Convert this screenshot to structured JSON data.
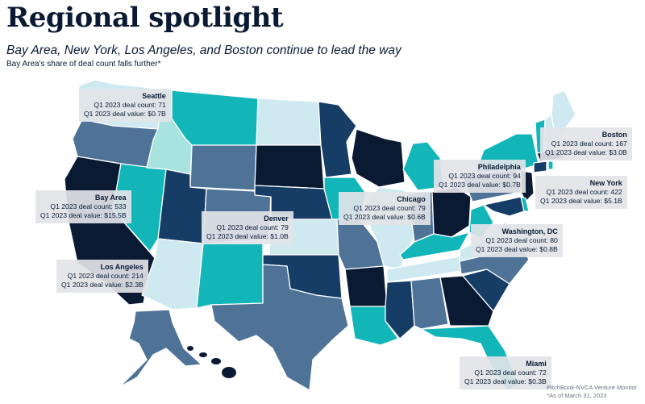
{
  "title": "Regional spotlight",
  "subtitle": "Bay Area, New York, Los Angeles, and Boston continue to lead the way",
  "note": "Bay Area's share of deal count falls further*",
  "colors": {
    "darkest": "#0b1a33",
    "dark": "#163d66",
    "medium": "#4f7397",
    "teal": "#12b6b8",
    "light": "#a8e3e0",
    "lightest": "#cfe9f0"
  },
  "callouts": [
    {
      "city": "Seattle",
      "count": "Q1 2023 deal count: 71",
      "value": "Q1 2023 deal value: $0.7B"
    },
    {
      "city": "Bay Area",
      "count": "Q1 2023 deal count: 533",
      "value": "Q1 2023 deal value: $15.5B"
    },
    {
      "city": "Los Angeles",
      "count": "Q1 2023 deal count: 214",
      "value": "Q1 2023 deal value: $2.3B"
    },
    {
      "city": "Denver",
      "count": "Q1 2023 deal count: 79",
      "value": "Q1 2023 deal value: $1.0B"
    },
    {
      "city": "Chicago",
      "count": "Q1 2023 deal count: 79",
      "value": "Q1 2023 deal value: $0.6B"
    },
    {
      "city": "Philadelphia",
      "count": "Q1 2023 deal count: 94",
      "value": "Q1 2023 deal value: $0.7B"
    },
    {
      "city": "Boston",
      "count": "Q1 2023 deal count: 167",
      "value": "Q1 2023 deal value: $3.0B"
    },
    {
      "city": "New York",
      "count": "Q1 2023 deal count: 422",
      "value": "Q1 2023 deal value: $5.1B"
    },
    {
      "city": "Washington, DC",
      "count": "Q1 2023 deal count: 80",
      "value": "Q1 2023 deal value: $0.8B"
    },
    {
      "city": "Miami",
      "count": "Q1 2023 deal count: 72",
      "value": "Q1 2023 deal value: $0.3B"
    }
  ],
  "source": {
    "line1": "PitchBook-NVCA Venture Monitor",
    "line2": "*As of March 31, 2023"
  }
}
